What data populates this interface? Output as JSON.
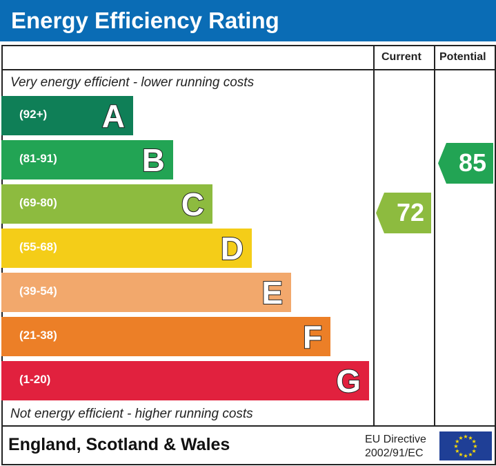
{
  "title": "Energy Efficiency Rating",
  "chart_data": {
    "type": "bar",
    "title": "Energy Efficiency Rating",
    "columns": [
      "Current",
      "Potential"
    ],
    "top_note": "Very energy efficient - lower running costs",
    "bottom_note": "Not energy efficient - higher running costs",
    "bands": [
      {
        "letter": "A",
        "range": "(92+)",
        "color": "#0f7f57"
      },
      {
        "letter": "B",
        "range": "(81-91)",
        "color": "#22a454"
      },
      {
        "letter": "C",
        "range": "(69-80)",
        "color": "#8dbb3f"
      },
      {
        "letter": "D",
        "range": "(55-68)",
        "color": "#f4cd18"
      },
      {
        "letter": "E",
        "range": "(39-54)",
        "color": "#f2a86c"
      },
      {
        "letter": "F",
        "range": "(21-38)",
        "color": "#ec7f27"
      },
      {
        "letter": "G",
        "range": "(1-20)",
        "color": "#e1213e"
      }
    ],
    "current": {
      "value": 72,
      "band": "C",
      "color": "#8dbb3f"
    },
    "potential": {
      "value": 85,
      "band": "B",
      "color": "#22a454"
    }
  },
  "footer": {
    "region": "England, Scotland & Wales",
    "directive_line1": "EU Directive",
    "directive_line2": "2002/91/EC",
    "flag_icon": "eu-flag-icon"
  }
}
